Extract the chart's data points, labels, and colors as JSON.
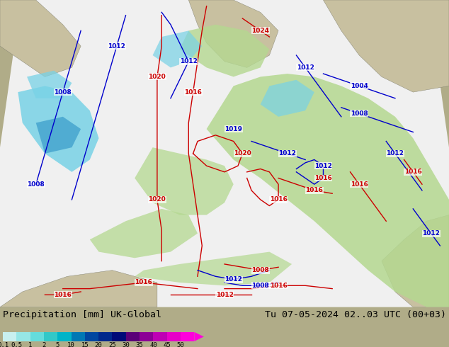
{
  "title_left": "Precipitation [mm] UK-Global",
  "title_right": "Tu 07-05-2024 02..03 UTC (00+03)",
  "colorbar_levels": [
    0.1,
    0.5,
    1,
    2,
    5,
    10,
    15,
    20,
    25,
    30,
    35,
    40,
    45,
    50
  ],
  "colorbar_colors": [
    "#c8f0f0",
    "#96e6e6",
    "#64dcdc",
    "#32c8c8",
    "#00b4c8",
    "#0078b4",
    "#0046a0",
    "#00288c",
    "#000a78",
    "#5a0078",
    "#8c0096",
    "#be00b4",
    "#e600c8",
    "#ff00dc"
  ],
  "land_color": "#c8c0a0",
  "sea_color": "#b0b8b8",
  "forecast_area_color": "#f0f0f0",
  "green_precip_color": "#b4d890",
  "cyan_precip_color": "#78d2e6",
  "blue_precip_color": "#5ab4dc",
  "dark_blue_precip": "#3296c8",
  "font_color": "#000000",
  "font_size_title": 10,
  "figure_width": 6.34,
  "figure_height": 4.9,
  "dpi": 100,
  "bottom_bar_height": 0.115,
  "red_isobar_color": "#cc0000",
  "blue_isobar_color": "#0000cc",
  "isobar_lw": 1.0,
  "label_fontsize": 6.5,
  "bg_outside": "#b0ac88"
}
